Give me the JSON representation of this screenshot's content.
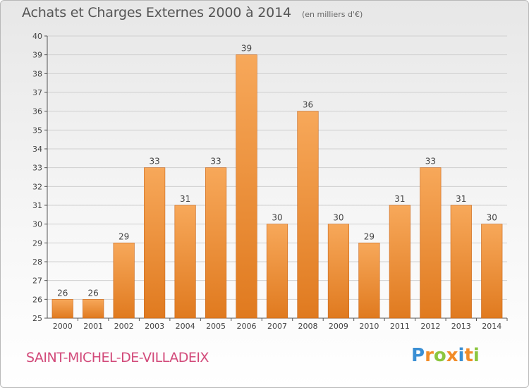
{
  "header": {
    "title": "Achats et Charges Externes 2000 à 2014",
    "subtitle": "(en milliers d'€)"
  },
  "footer": {
    "commune": "SAINT-MICHEL-DE-VILLADEIX",
    "logo_text": "Proxiti",
    "logo_letters": [
      {
        "ch": "P",
        "color": "#3a8fd4"
      },
      {
        "ch": "r",
        "color": "#f28c28"
      },
      {
        "ch": "o",
        "color": "#8cc63f"
      },
      {
        "ch": "x",
        "color": "#f28c28"
      },
      {
        "ch": "i",
        "color": "#3a8fd4"
      },
      {
        "ch": "t",
        "color": "#f28c28"
      },
      {
        "ch": "i",
        "color": "#8cc63f"
      }
    ]
  },
  "colors": {
    "bar_light": "#f7a85a",
    "bar_dark": "#e07a1f",
    "bar_edge": "#c9661a",
    "grid": "#d0d0d0",
    "axis": "#555555",
    "commune": "#d24a7a"
  },
  "chart_data": {
    "type": "bar",
    "title": "Achats et Charges Externes 2000 à 2014",
    "subtitle": "(en milliers d'€)",
    "categories": [
      "2000",
      "2001",
      "2002",
      "2003",
      "2004",
      "2005",
      "2006",
      "2007",
      "2008",
      "2009",
      "2010",
      "2011",
      "2012",
      "2013",
      "2014"
    ],
    "values": [
      26,
      26,
      29,
      33,
      31,
      33,
      39,
      30,
      36,
      30,
      29,
      31,
      33,
      31,
      30
    ],
    "ylim": [
      25,
      40
    ],
    "yticks": [
      "25",
      "26",
      "27",
      "28",
      "29",
      "30",
      "31",
      "32",
      "33",
      "34",
      "35",
      "36",
      "37",
      "38",
      "39",
      "40"
    ],
    "grid": true,
    "data_labels": true
  }
}
